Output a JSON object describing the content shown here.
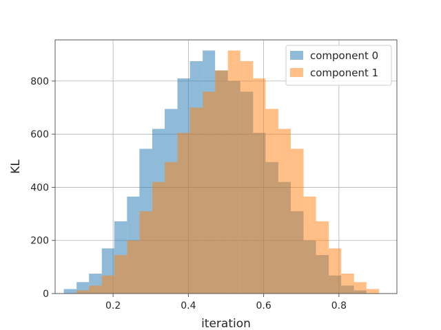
{
  "chart_data": {
    "type": "histogram",
    "xlabel": "iteration",
    "ylabel": "KL",
    "xlim": [
      0.046,
      0.954
    ],
    "ylim": [
      0,
      955
    ],
    "xticks": [
      0.2,
      0.4,
      0.6,
      0.8
    ],
    "xtick_labels": [
      "0.2",
      "0.4",
      "0.6",
      "0.8"
    ],
    "yticks": [
      0,
      200,
      400,
      600,
      800
    ],
    "ytick_labels": [
      "0",
      "200",
      "400",
      "600",
      "800"
    ],
    "grid": true,
    "legend_position": "top-right",
    "series": [
      {
        "name": "component 0",
        "color": "#1f77b4",
        "opacity": 0.5,
        "bins": [
          {
            "x0": 0.069,
            "x1": 0.103,
            "count": 17
          },
          {
            "x0": 0.103,
            "x1": 0.136,
            "count": 43
          },
          {
            "x0": 0.136,
            "x1": 0.17,
            "count": 75
          },
          {
            "x0": 0.17,
            "x1": 0.203,
            "count": 170
          },
          {
            "x0": 0.203,
            "x1": 0.237,
            "count": 272
          },
          {
            "x0": 0.237,
            "x1": 0.27,
            "count": 365
          },
          {
            "x0": 0.27,
            "x1": 0.304,
            "count": 545
          },
          {
            "x0": 0.304,
            "x1": 0.337,
            "count": 620
          },
          {
            "x0": 0.337,
            "x1": 0.371,
            "count": 695
          },
          {
            "x0": 0.371,
            "x1": 0.404,
            "count": 810
          },
          {
            "x0": 0.404,
            "x1": 0.438,
            "count": 875
          },
          {
            "x0": 0.438,
            "x1": 0.471,
            "count": 915
          },
          {
            "x0": 0.471,
            "x1": 0.505,
            "count": 840
          },
          {
            "x0": 0.505,
            "x1": 0.538,
            "count": 800
          },
          {
            "x0": 0.538,
            "x1": 0.572,
            "count": 760
          },
          {
            "x0": 0.572,
            "x1": 0.605,
            "count": 605
          },
          {
            "x0": 0.605,
            "x1": 0.639,
            "count": 495
          },
          {
            "x0": 0.639,
            "x1": 0.672,
            "count": 420
          },
          {
            "x0": 0.672,
            "x1": 0.706,
            "count": 310
          },
          {
            "x0": 0.706,
            "x1": 0.739,
            "count": 200
          },
          {
            "x0": 0.739,
            "x1": 0.773,
            "count": 145
          },
          {
            "x0": 0.773,
            "x1": 0.806,
            "count": 68
          },
          {
            "x0": 0.806,
            "x1": 0.84,
            "count": 30
          },
          {
            "x0": 0.84,
            "x1": 0.873,
            "count": 12
          }
        ]
      },
      {
        "name": "component 1",
        "color": "#ff7f0e",
        "opacity": 0.5,
        "bins": [
          {
            "x0": 0.103,
            "x1": 0.136,
            "count": 12
          },
          {
            "x0": 0.136,
            "x1": 0.17,
            "count": 30
          },
          {
            "x0": 0.17,
            "x1": 0.203,
            "count": 68
          },
          {
            "x0": 0.203,
            "x1": 0.237,
            "count": 145
          },
          {
            "x0": 0.237,
            "x1": 0.27,
            "count": 200
          },
          {
            "x0": 0.27,
            "x1": 0.304,
            "count": 310
          },
          {
            "x0": 0.304,
            "x1": 0.337,
            "count": 420
          },
          {
            "x0": 0.337,
            "x1": 0.371,
            "count": 495
          },
          {
            "x0": 0.371,
            "x1": 0.404,
            "count": 605
          },
          {
            "x0": 0.404,
            "x1": 0.438,
            "count": 700
          },
          {
            "x0": 0.438,
            "x1": 0.471,
            "count": 760
          },
          {
            "x0": 0.471,
            "x1": 0.505,
            "count": 840
          },
          {
            "x0": 0.505,
            "x1": 0.538,
            "count": 915
          },
          {
            "x0": 0.538,
            "x1": 0.572,
            "count": 875
          },
          {
            "x0": 0.572,
            "x1": 0.605,
            "count": 810
          },
          {
            "x0": 0.605,
            "x1": 0.639,
            "count": 695
          },
          {
            "x0": 0.639,
            "x1": 0.672,
            "count": 620
          },
          {
            "x0": 0.672,
            "x1": 0.706,
            "count": 545
          },
          {
            "x0": 0.706,
            "x1": 0.739,
            "count": 365
          },
          {
            "x0": 0.739,
            "x1": 0.773,
            "count": 272
          },
          {
            "x0": 0.773,
            "x1": 0.806,
            "count": 170
          },
          {
            "x0": 0.806,
            "x1": 0.84,
            "count": 75
          },
          {
            "x0": 0.84,
            "x1": 0.873,
            "count": 43
          },
          {
            "x0": 0.873,
            "x1": 0.907,
            "count": 17
          }
        ]
      }
    ]
  }
}
